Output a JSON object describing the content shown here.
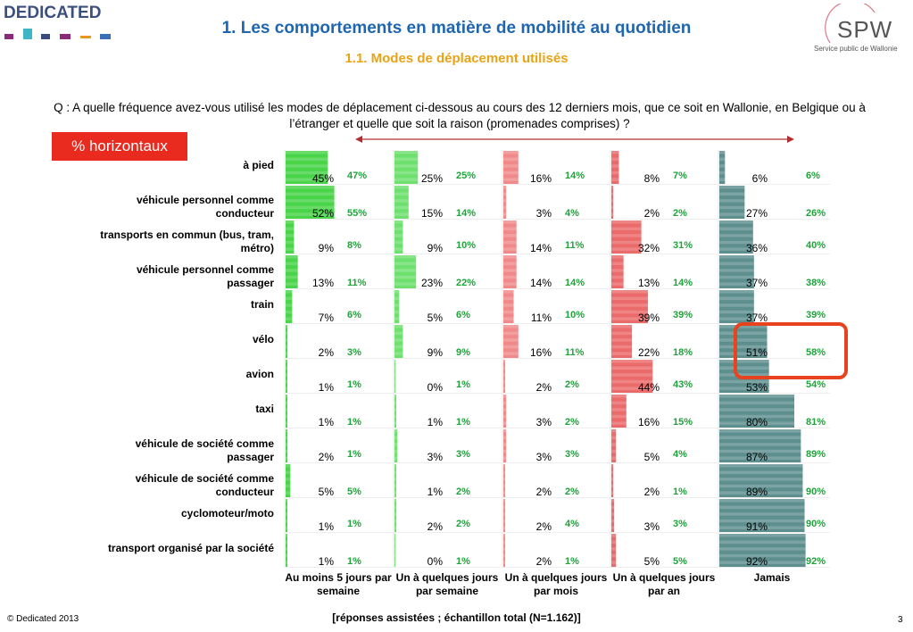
{
  "brand": {
    "name": "DEDICATED",
    "spw_word": "SPW",
    "spw_caption": "Service public de Wallonie"
  },
  "title": "1. Les comportements en matière de mobilité au quotidien",
  "subtitle": "1.1. Modes de déplacement utilisés",
  "question": "Q : A quelle fréquence avez-vous utilisé les modes de déplacement ci-dessous au cours des 12 derniers mois, que ce soit en Wallonie, en Belgique ou à l’étranger et quelle que soit la raison (promenades comprises) ?",
  "badge": "% horizontaux",
  "footer": {
    "copyright": "© Dedicated 2013",
    "note": "[réponses assistées ; échantillon total (N=1.162)]",
    "page": "3"
  },
  "colors": {
    "col1": "#49d449",
    "col2": "#6ee06e",
    "col3": "#f08a8a",
    "col4": "#eb6a6a",
    "col5": "#5e8f8f",
    "reference": "#1fa33a"
  },
  "chart_data": {
    "type": "bar",
    "categories": [
      "à pied",
      "véhicule personnel comme conducteur",
      "transports en commun (bus, tram, métro)",
      "véhicule personnel comme passager",
      "train",
      "vélo",
      "avion",
      "taxi",
      "véhicule de société comme passager",
      "véhicule de société comme conducteur",
      "cyclomoteur/moto",
      "transport organisé par la société"
    ],
    "series": [
      {
        "name": "Au moins 5 jours par semaine",
        "values": [
          45,
          52,
          9,
          13,
          7,
          2,
          1,
          1,
          2,
          5,
          1,
          1
        ],
        "reference": [
          "47%",
          "55%",
          "8%",
          "11%",
          "6%",
          "3%",
          "1%",
          "1%",
          "1%",
          "5%",
          "1%",
          "1%"
        ]
      },
      {
        "name": "Un à quelques jours par semaine",
        "values": [
          25,
          15,
          9,
          23,
          5,
          9,
          0,
          1,
          3,
          1,
          2,
          0
        ],
        "reference": [
          "25%",
          "14%",
          "10%",
          "22%",
          "6%",
          "9%",
          "1%",
          "1%",
          "3%",
          "2%",
          "2%",
          "1%"
        ]
      },
      {
        "name": "Un à quelques jours par mois",
        "values": [
          16,
          3,
          14,
          14,
          11,
          16,
          2,
          3,
          3,
          2,
          2,
          2
        ],
        "reference": [
          "14%",
          "4%",
          "11%",
          "14%",
          "10%",
          "11%",
          "2%",
          "2%",
          "3%",
          "2%",
          "4%",
          "1%"
        ]
      },
      {
        "name": "Un à quelques jours par an",
        "values": [
          8,
          2,
          32,
          13,
          39,
          22,
          44,
          16,
          5,
          2,
          3,
          5
        ],
        "reference": [
          "7%",
          "2%",
          "31%",
          "14%",
          "39%",
          "18%",
          "43%",
          "15%",
          "4%",
          "1%",
          "3%",
          "5%"
        ]
      },
      {
        "name": "Jamais",
        "values": [
          6,
          27,
          36,
          37,
          37,
          51,
          53,
          80,
          87,
          89,
          91,
          92
        ],
        "reference": [
          "6%",
          "26%",
          "40%",
          "38%",
          "39%",
          "58%",
          "54%",
          "81%",
          "89%",
          "90%",
          "90%",
          "92%"
        ]
      }
    ]
  }
}
